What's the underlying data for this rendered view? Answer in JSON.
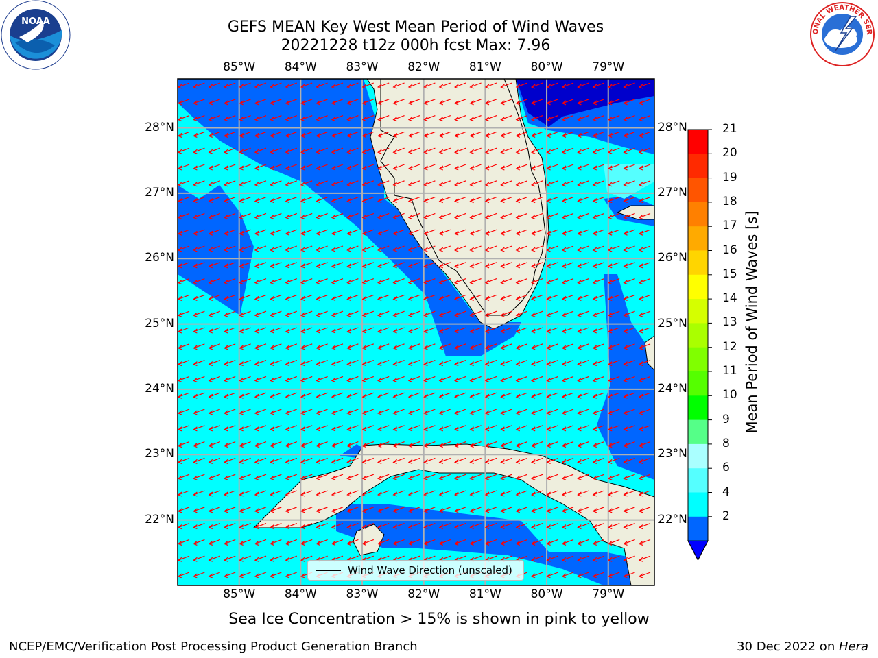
{
  "title": {
    "line1": "GEFS MEAN Key West Mean Period of Wind Waves",
    "line2": "20221228 t12z 000h fcst   Max: 7.96"
  },
  "map": {
    "lon_labels": [
      "85°W",
      "84°W",
      "83°W",
      "82°W",
      "81°W",
      "80°W",
      "79°W"
    ],
    "lat_labels": [
      "28°N",
      "27°N",
      "26°N",
      "25°N",
      "24°N",
      "23°N",
      "22°N"
    ],
    "extent": {
      "lon_min": -86.0,
      "lon_max": -78.25,
      "lat_min": 21.0,
      "lat_max": 28.75
    },
    "colors": {
      "land": "#eeeedd",
      "ocean_4_6": "#00ffff",
      "ocean_2_4": "#0066ff",
      "ocean_6_8": "#55ffff",
      "ocean_lt_2": "#0000cc",
      "arrows": "#ff0000",
      "grid": "#b0b0b0"
    },
    "wind_wave_direction": "west-southwest"
  },
  "colorbar": {
    "ticks": [
      "21",
      "20",
      "19",
      "18",
      "17",
      "16",
      "15",
      "14",
      "13",
      "12",
      "11",
      "10",
      "9",
      "8",
      "6",
      "4",
      "2"
    ],
    "colors": [
      "#ff0000",
      "#ff2a00",
      "#ff5500",
      "#ff8000",
      "#ffaa00",
      "#ffd500",
      "#ffff00",
      "#d5ff00",
      "#aaff00",
      "#80ff00",
      "#55ff00",
      "#00ff00",
      "#55ff88",
      "#aaffff",
      "#55ffff",
      "#00ffff",
      "#0066ff"
    ],
    "under_color": "#0000ff",
    "label": "Mean Period of Wind Waves [s]"
  },
  "legend": {
    "label": "Wind Wave Direction (unscaled)"
  },
  "footer": {
    "note": "Sea Ice Concentration > 15% is shown in pink to yellow",
    "credit": "NCEP/EMC/Verification Post Processing Product Generation Branch",
    "date_prefix": "30 Dec 2022 on ",
    "host": "Hera"
  },
  "logos": {
    "noaa_text": "NOAA",
    "nws_text": "NATIONAL WEATHER SERVICE"
  }
}
